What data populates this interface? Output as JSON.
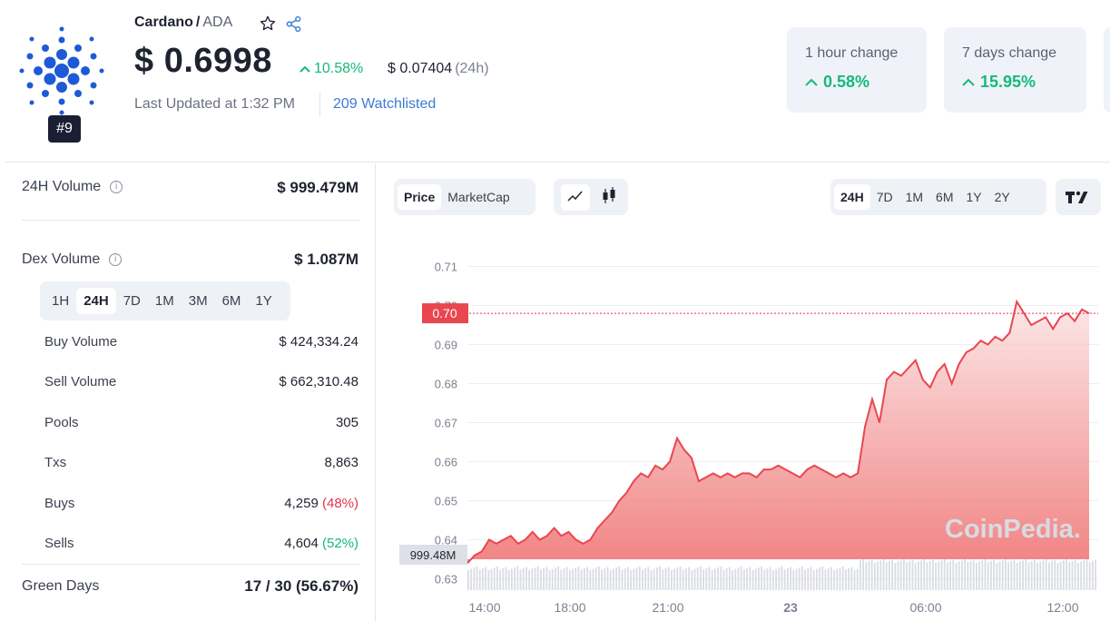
{
  "coin": {
    "name": "Cardano",
    "symbol": "ADA",
    "rank": "#9",
    "price": "$ 0.6998",
    "pct_change": "10.58%",
    "abs_change": "$ 0.07404",
    "abs_change_period": "(24h)",
    "last_updated": "Last Updated at 1:32 PM",
    "watchlisted": "209 Watchlisted"
  },
  "cards": [
    {
      "label": "1 hour change",
      "value": "0.58%"
    },
    {
      "label": "7 days change",
      "value": "15.95%"
    }
  ],
  "stats": {
    "volume_24h_label": "24H Volume",
    "volume_24h_value": "$ 999.479M",
    "dex_volume_label": "Dex Volume",
    "dex_volume_value": "$ 1.087M",
    "dex_periods": [
      "1H",
      "24H",
      "7D",
      "1M",
      "3M",
      "6M",
      "1Y"
    ],
    "dex_active_period": "24H",
    "rows": [
      {
        "label": "Buy Volume",
        "value": "$ 424,334.24"
      },
      {
        "label": "Sell Volume",
        "value": "$ 662,310.48"
      },
      {
        "label": "Pools",
        "value": "305"
      },
      {
        "label": "Txs",
        "value": "8,863"
      },
      {
        "label": "Buys",
        "value": "4,259",
        "pct": "(48%)"
      },
      {
        "label": "Sells",
        "value": "4,604",
        "pct": "(52%)"
      }
    ],
    "green_days_label": "Green Days",
    "green_days_value": "17 / 30 (56.67%)"
  },
  "chart_controls": {
    "type_tabs": [
      "Price",
      "MarketCap"
    ],
    "active_type": "Price",
    "range_tabs": [
      "24H",
      "7D",
      "1M",
      "6M",
      "1Y",
      "2Y"
    ],
    "active_range": "24H"
  },
  "colors": {
    "accent_green": "#16b979",
    "accent_red": "#e2344f",
    "line_red": "#e8474f",
    "link_blue": "#3a7bd5"
  },
  "icons": [
    "cardano-logo",
    "star-icon",
    "share-icon",
    "info-icon",
    "line-chart-icon",
    "candlestick-icon",
    "tradingview-icon",
    "arrow-up-icon"
  ],
  "chart_data": {
    "type": "area",
    "title": "",
    "xlabel": "",
    "ylabel": "",
    "x_ticks": [
      "14:00",
      "18:00",
      "21:00",
      "23",
      "06:00",
      "12:00"
    ],
    "y_ticks": [
      "0.71",
      "0.70",
      "0.69",
      "0.68",
      "0.67",
      "0.66",
      "0.65",
      "0.64",
      "0.63"
    ],
    "ylim": [
      0.6285,
      0.7215
    ],
    "current_price_label": "0.70",
    "current_volume_label": "999.48M",
    "watermark": "CoinPedia.",
    "grid": true,
    "series": [
      {
        "values": [
          0.634,
          0.636,
          0.637,
          0.64,
          0.639,
          0.64,
          0.641,
          0.639,
          0.64,
          0.642,
          0.64,
          0.641,
          0.643,
          0.641,
          0.642,
          0.64,
          0.639,
          0.64,
          0.643,
          0.645,
          0.647,
          0.65,
          0.652,
          0.655,
          0.657,
          0.656,
          0.659,
          0.658,
          0.66,
          0.666,
          0.663,
          0.661,
          0.655,
          0.656,
          0.657,
          0.656,
          0.657,
          0.656,
          0.657,
          0.657,
          0.656,
          0.658,
          0.658,
          0.659,
          0.658,
          0.657,
          0.656,
          0.658,
          0.659,
          0.658,
          0.657,
          0.656,
          0.657,
          0.656,
          0.657,
          0.669,
          0.676,
          0.67,
          0.681,
          0.683,
          0.682,
          0.684,
          0.686,
          0.681,
          0.679,
          0.683,
          0.685,
          0.68,
          0.685,
          0.688,
          0.689,
          0.691,
          0.69,
          0.692,
          0.691,
          0.693,
          0.701,
          0.698,
          0.695,
          0.696,
          0.697,
          0.694,
          0.697,
          0.698,
          0.696,
          0.699,
          0.698
        ]
      }
    ]
  }
}
